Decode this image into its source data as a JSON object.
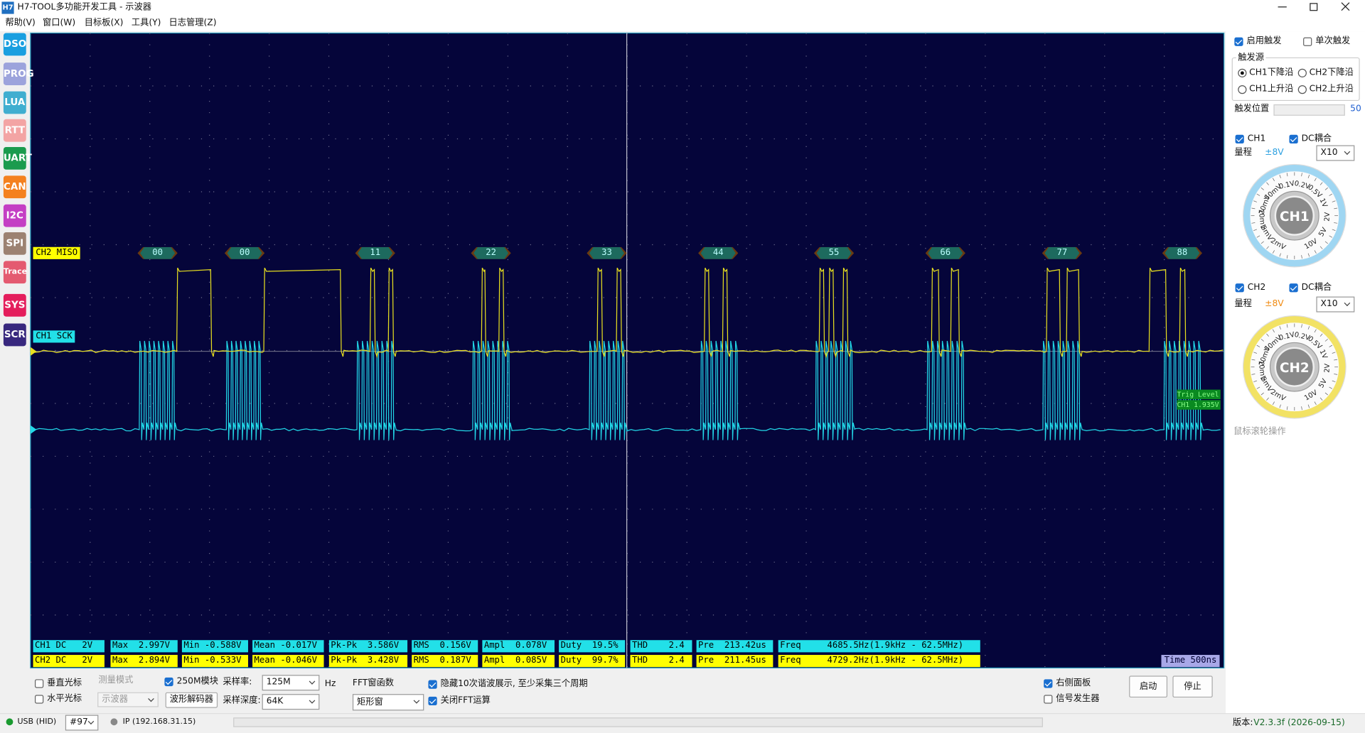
{
  "window": {
    "icon": "H7",
    "title": "H7-TOOL多功能开发工具 - 示波器"
  },
  "menu": [
    "帮助(V)",
    "窗口(W)",
    "目标板(X)",
    "工具(Y)",
    "日志管理(Z)"
  ],
  "sidebar": [
    "DSO",
    "PROG",
    "LUA",
    "RTT",
    "UART",
    "CAN",
    "I2C",
    "SPI",
    "Trace",
    "SYS",
    "SCR"
  ],
  "scope": {
    "ch2_label": "CH2 MISO",
    "ch1_label": "CH1 SCK",
    "decode": [
      "00",
      "00",
      "11",
      "22",
      "33",
      "44",
      "55",
      "66",
      "77",
      "88"
    ],
    "trig_level": "Trig Level",
    "trig_value": "CH1 1.935V",
    "time": "Time 500ns",
    "ch1_measure": [
      "CH1 DC   2V",
      "Max  2.997V",
      "Min -0.588V",
      "Mean -0.017V",
      "Pk-Pk  3.586V",
      "RMS  0.156V",
      "Ampl  0.078V",
      "Duty  19.5%",
      "THD    2.4",
      "Pre  213.42us",
      "Freq     4685.5Hz(1.9kHz - 62.5MHz)"
    ],
    "ch2_measure": [
      "CH2 DC   2V",
      "Max  2.894V",
      "Min -0.533V",
      "Mean -0.046V",
      "Pk-Pk  3.428V",
      "RMS  0.187V",
      "Ampl  0.085V",
      "Duty  99.7%",
      "THD    2.4",
      "Pre  211.45us",
      "Freq     4729.2Hz(1.9kHz - 62.5MHz)"
    ]
  },
  "trigger": {
    "enable": "启用触发",
    "single": "单次触发",
    "source_title": "触发源",
    "sources": [
      "CH1下降沿",
      "CH2下降沿",
      "CH1上升沿",
      "CH2上升沿"
    ],
    "position_label": "触发位置",
    "position": 50
  },
  "ch1": {
    "name": "CH1",
    "coupling": "DC耦合",
    "range_label": "量程",
    "range": "±8V",
    "probe": "X10",
    "dial_name": "CH1",
    "dial": [
      "2mV",
      "5mV",
      "10mV",
      "20mV",
      "50mV",
      "0.1V",
      "0.2V",
      "0.5V",
      "1V",
      "2V",
      "5V",
      "10V"
    ]
  },
  "ch2": {
    "name": "CH2",
    "coupling": "DC耦合",
    "range_label": "量程",
    "range": "±8V",
    "probe": "X10",
    "dial_name": "CH2",
    "dial": [
      "2mV",
      "5mV",
      "10mV",
      "20mV",
      "50mV",
      "0.1V",
      "0.2V",
      "0.5V",
      "1V",
      "2V",
      "5V",
      "10V"
    ]
  },
  "hint": "鼠标滚轮操作",
  "bottom": {
    "v_cursor": "垂直光标",
    "h_cursor": "水平光标",
    "measure_mode": "测量模式",
    "mode_value": "示波器",
    "module": "250M模块",
    "decoder": "波形解码器",
    "rate_label": "采样率:",
    "rate": "125M",
    "rate_unit": "Hz",
    "depth_label": "采样深度:",
    "depth": "64K",
    "fft_label": "FFT窗函数",
    "fft_window": "矩形窗",
    "hide_harmonics": "隐藏10次谐波展示, 至少采集三个周期",
    "close_fft": "关闭FFT运算",
    "right_panel": "右侧面板",
    "signal_gen": "信号发生器",
    "start": "启动",
    "stop": "停止"
  },
  "status": {
    "usb": "USB (HID)",
    "port": "#97",
    "ip": "IP (192.168.31.15)",
    "version_label": "版本:",
    "version": "V2.3.3f (2026-09-15)"
  }
}
